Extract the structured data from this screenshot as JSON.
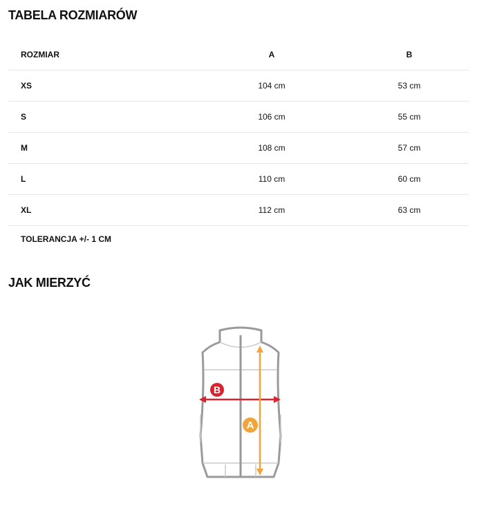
{
  "title": "TABELA ROZMIARÓW",
  "table": {
    "headers": [
      "ROZMIAR",
      "A",
      "B"
    ],
    "rows": [
      [
        "XS",
        "104 cm",
        "53 cm"
      ],
      [
        "S",
        "106 cm",
        "55 cm"
      ],
      [
        "M",
        "108 cm",
        "57 cm"
      ],
      [
        "L",
        "110 cm",
        "60 cm"
      ],
      [
        "XL",
        "112 cm",
        "63 cm"
      ]
    ]
  },
  "tolerance": "TOLERANCJA +/- 1 CM",
  "how_to_measure": {
    "title": "JAK MIERZYĆ",
    "label_a": "A",
    "label_b": "B",
    "color_a": "#f0a53a",
    "color_b": "#d9232e"
  }
}
